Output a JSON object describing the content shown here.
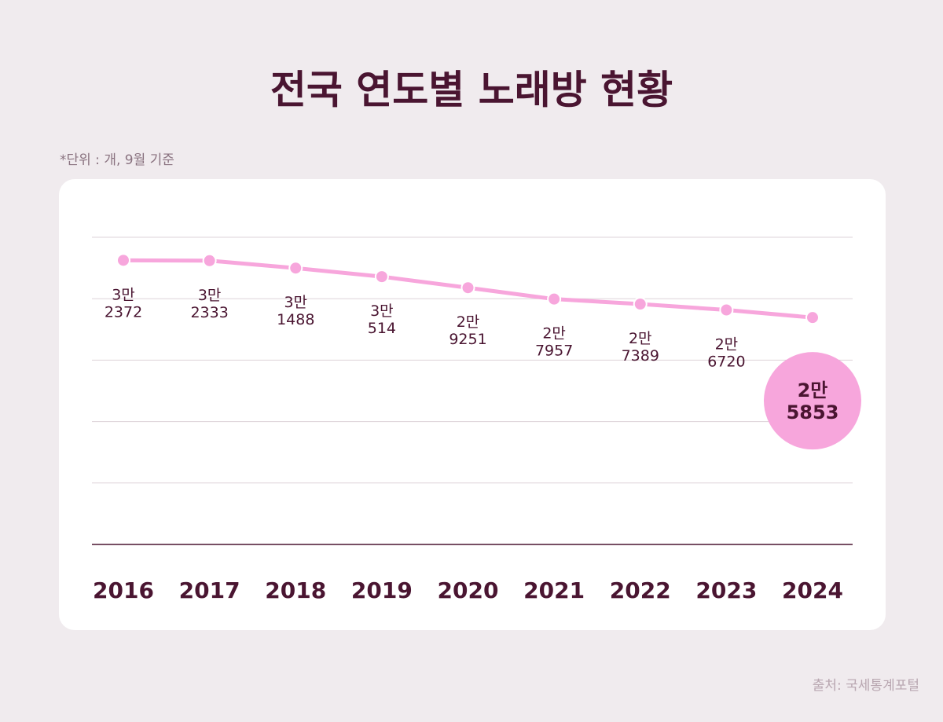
{
  "chart_data": {
    "type": "line",
    "title": "전국 연도별 노래방 현황",
    "subtitle": "*단위 : 개, 9월 기준",
    "source": "출처: 국세통계포털",
    "categories": [
      "2016",
      "2017",
      "2018",
      "2019",
      "2020",
      "2021",
      "2022",
      "2023",
      "2024"
    ],
    "series": [
      {
        "color": "#f7a6dc",
        "values": [
          32372,
          32333,
          31488,
          30514,
          29251,
          27957,
          27389,
          26720,
          25853
        ],
        "value_labels": [
          "3만 2372",
          "3만 2333",
          "3만 1488",
          "3만 514",
          "2만 9251",
          "2만 7957",
          "2만 7389",
          "2만 6720",
          "2만 5853"
        ]
      }
    ],
    "ylim": [
      0,
      35000
    ],
    "yticks": [
      0,
      7000,
      14000,
      21000,
      28000,
      35000
    ],
    "grid": true
  }
}
